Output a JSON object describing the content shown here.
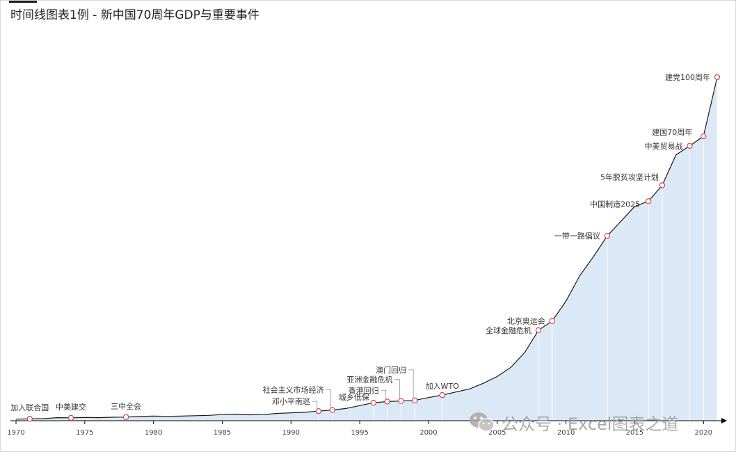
{
  "title": "时间线图表1例 - 新中国70周年GDP与重要事件",
  "watermark": {
    "text": "公众号 · Excel图表之道",
    "icon": "wechat-icon"
  },
  "colors": {
    "area_fill": "#dbe8f6",
    "line": "#1a1a1a",
    "marker_stroke": "#d64545",
    "marker_fill": "#ffffff",
    "drop_line": "#ffffff",
    "axis": "#000000"
  },
  "chart_data": {
    "type": "area",
    "title": "时间线图表1例 - 新中国70周年GDP与重要事件",
    "xlabel": "",
    "ylabel": "",
    "xlim": [
      1970,
      2021
    ],
    "x_ticks": [
      1970,
      1975,
      1980,
      1985,
      1990,
      1995,
      2000,
      2005,
      2010,
      2015,
      2020
    ],
    "grid": false,
    "y_axis_shown": false,
    "series": [
      {
        "x": [
          1970,
          1971,
          1972,
          1973,
          1974,
          1975,
          1976,
          1977,
          1978,
          1979,
          1980,
          1981,
          1982,
          1983,
          1984,
          1985,
          1986,
          1987,
          1988,
          1989,
          1990,
          1991,
          1992,
          1993,
          1994,
          1995,
          1996,
          1997,
          1998,
          1999,
          2000,
          2001,
          2002,
          2003,
          2004,
          2005,
          2006,
          2007,
          2008,
          2009,
          2010,
          2011,
          2012,
          2013,
          2014,
          2015,
          2016,
          2017,
          2018,
          2019,
          2020,
          2021
        ],
        "values": [
          0.8,
          1.0,
          1.1,
          1.6,
          1.5,
          1.7,
          1.6,
          1.8,
          1.9,
          2.2,
          2.4,
          2.3,
          2.4,
          2.6,
          2.8,
          3.2,
          3.4,
          3.1,
          3.2,
          3.8,
          4.1,
          4.4,
          5.0,
          5.6,
          6.4,
          7.9,
          9.4,
          10.0,
          10.3,
          10.6,
          12.1,
          13.4,
          15.0,
          16.6,
          19.6,
          23.1,
          27.9,
          35.7,
          47.3,
          52.1,
          62.5,
          75.8,
          85.7,
          96.6,
          104.2,
          112.0,
          114.7,
          123.0,
          138.9,
          143.6,
          148.6,
          179.5
        ]
      }
    ],
    "events": [
      {
        "year": 1971,
        "label": "加入联合国"
      },
      {
        "year": 1974,
        "label": "中美建交"
      },
      {
        "year": 1978,
        "label": "三中全会"
      },
      {
        "year": 1992,
        "label": "邓小平南巡"
      },
      {
        "year": 1993,
        "label": "社会主义市场经济"
      },
      {
        "year": 1996,
        "label": "城乡低保"
      },
      {
        "year": 1997,
        "label": "香港回归"
      },
      {
        "year": 1998,
        "label": "亚洲金融危机"
      },
      {
        "year": 1999,
        "label": "澳门回归"
      },
      {
        "year": 2001,
        "label": "加入WTO"
      },
      {
        "year": 2008,
        "label": "全球金融危机"
      },
      {
        "year": 2009,
        "label": "北京奥运会"
      },
      {
        "year": 2013,
        "label": "一带一路倡议"
      },
      {
        "year": 2016,
        "label": "中国制造2025"
      },
      {
        "year": 2017,
        "label": "5年脱贫攻坚计划"
      },
      {
        "year": 2019,
        "label": "中美贸易战"
      },
      {
        "year": 2020,
        "label": "建国70周年"
      },
      {
        "year": 2021,
        "label": "建党100周年"
      }
    ]
  }
}
